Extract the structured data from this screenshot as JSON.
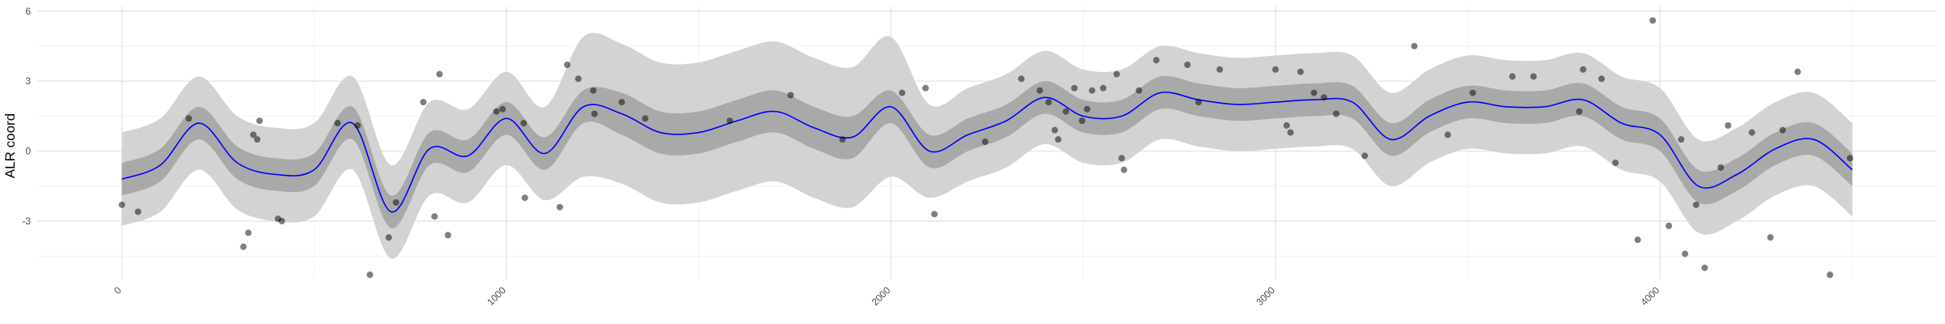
{
  "chart_data": {
    "type": "line",
    "y_label": "ALR coord",
    "xlim": [
      -220,
      4720
    ],
    "ylim": [
      -5.5,
      6.2
    ],
    "xticks": [
      0,
      1000,
      2000,
      3000,
      4000
    ],
    "yticks": [
      -3,
      0,
      3,
      6
    ],
    "grid": true,
    "x": [
      0,
      100,
      200,
      300,
      400,
      500,
      600,
      700,
      800,
      900,
      1000,
      1100,
      1200,
      1300,
      1400,
      1500,
      1600,
      1700,
      1800,
      1900,
      2000,
      2100,
      2200,
      2300,
      2400,
      2500,
      2600,
      2700,
      2800,
      2900,
      3000,
      3100,
      3200,
      3300,
      3400,
      3500,
      3600,
      3700,
      3800,
      3900,
      4000,
      4100,
      4200,
      4300,
      4400,
      4500
    ],
    "outer_band": {
      "color": "#d3d3d3",
      "lower": [
        -3.2,
        -2.6,
        -0.8,
        -2.5,
        -3.0,
        -2.8,
        -0.8,
        -4.6,
        -1.9,
        -2.2,
        -0.6,
        -2.1,
        -1.1,
        -1.4,
        -2.2,
        -2.2,
        -1.7,
        -1.3,
        -2.0,
        -2.4,
        -1.1,
        -2.0,
        -1.3,
        -0.7,
        0.3,
        -0.5,
        -0.5,
        0.5,
        0.2,
        0.0,
        0.1,
        0.2,
        0.1,
        -1.5,
        -0.5,
        0.1,
        -0.1,
        -0.1,
        0.2,
        -0.8,
        -1.3,
        -3.5,
        -3.0,
        -1.9,
        -1.5,
        -2.8
      ],
      "upper": [
        0.8,
        1.4,
        3.2,
        1.5,
        1.0,
        1.2,
        3.2,
        -0.6,
        2.1,
        1.8,
        3.4,
        1.9,
        4.9,
        4.6,
        3.8,
        3.8,
        4.3,
        4.7,
        4.0,
        3.6,
        4.9,
        2.0,
        2.7,
        3.3,
        4.3,
        3.5,
        3.5,
        4.5,
        4.2,
        4.0,
        4.1,
        4.2,
        4.1,
        2.5,
        3.5,
        4.1,
        3.9,
        3.9,
        4.2,
        3.2,
        2.7,
        0.5,
        1.0,
        2.1,
        2.5,
        1.2
      ]
    },
    "inner_band": {
      "color": "#a9a9a9",
      "lower": [
        -1.9,
        -1.3,
        0.5,
        -1.2,
        -1.7,
        -1.5,
        0.5,
        -3.3,
        -0.6,
        -0.9,
        0.7,
        -0.8,
        1.2,
        0.7,
        -0.1,
        -0.1,
        0.4,
        0.8,
        0.1,
        -0.3,
        1.2,
        -0.7,
        0.0,
        0.6,
        1.6,
        0.8,
        0.8,
        1.8,
        1.5,
        1.3,
        1.4,
        1.5,
        1.4,
        -0.2,
        0.8,
        1.4,
        1.2,
        1.2,
        1.5,
        0.5,
        0.0,
        -2.2,
        -1.7,
        -0.6,
        -0.2,
        -1.5
      ],
      "upper": [
        -0.5,
        0.1,
        1.9,
        0.2,
        -0.3,
        -0.1,
        1.9,
        -1.9,
        0.8,
        0.5,
        2.1,
        0.6,
        2.6,
        2.5,
        1.7,
        1.7,
        2.2,
        2.6,
        1.9,
        1.5,
        2.6,
        0.7,
        1.4,
        2.0,
        3.0,
        2.2,
        2.2,
        3.2,
        2.9,
        2.7,
        2.8,
        2.9,
        2.8,
        1.2,
        2.2,
        2.8,
        2.6,
        2.6,
        2.9,
        1.9,
        1.4,
        -0.8,
        -0.3,
        0.8,
        1.2,
        -0.1
      ]
    },
    "line": {
      "color": "#0000ff",
      "values": [
        -1.2,
        -0.6,
        1.2,
        -0.5,
        -1.0,
        -0.8,
        1.2,
        -2.6,
        0.1,
        -0.2,
        1.4,
        -0.1,
        1.9,
        1.6,
        0.8,
        0.8,
        1.3,
        1.7,
        1.0,
        0.6,
        1.9,
        0.0,
        0.7,
        1.3,
        2.3,
        1.5,
        1.5,
        2.5,
        2.2,
        2.0,
        2.1,
        2.2,
        2.1,
        0.5,
        1.5,
        2.1,
        1.9,
        1.9,
        2.2,
        1.2,
        0.7,
        -1.5,
        -1.0,
        0.1,
        0.5,
        -0.8
      ]
    },
    "points": {
      "color": "#000000",
      "x": [
        0,
        42,
        174,
        316,
        329,
        342,
        352,
        358,
        406,
        416,
        561,
        613,
        645,
        694,
        713,
        784,
        813,
        826,
        848,
        974,
        990,
        1045,
        1048,
        1139,
        1158,
        1187,
        1226,
        1229,
        1300,
        1361,
        1581,
        1739,
        1874,
        2029,
        2090,
        2113,
        2245,
        2339,
        2387,
        2410,
        2426,
        2435,
        2455,
        2477,
        2497,
        2510,
        2523,
        2552,
        2587,
        2600,
        2606,
        2645,
        2690,
        2771,
        2800,
        2855,
        3000,
        3029,
        3039,
        3065,
        3100,
        3126,
        3158,
        3232,
        3361,
        3448,
        3513,
        3616,
        3671,
        3790,
        3800,
        3848,
        3884,
        3942,
        3981,
        4023,
        4055,
        4065,
        4094,
        4116,
        4158,
        4177,
        4239,
        4287,
        4319,
        4358,
        4442,
        4494
      ],
      "y": [
        -2.3,
        -2.6,
        1.4,
        -4.1,
        -3.5,
        0.7,
        0.5,
        1.3,
        -2.9,
        -3.0,
        1.2,
        1.1,
        -5.3,
        -3.7,
        -2.2,
        2.1,
        -2.8,
        3.3,
        -3.6,
        1.7,
        1.8,
        1.2,
        -2.0,
        -2.4,
        3.7,
        3.1,
        2.6,
        1.6,
        2.1,
        1.4,
        1.3,
        2.4,
        0.5,
        2.5,
        2.7,
        -2.7,
        0.4,
        3.1,
        2.6,
        2.1,
        0.9,
        0.5,
        1.7,
        2.7,
        1.3,
        1.8,
        2.6,
        2.7,
        3.3,
        -0.3,
        -0.8,
        2.6,
        3.9,
        3.7,
        2.1,
        3.5,
        3.5,
        1.1,
        0.8,
        3.4,
        2.5,
        2.3,
        1.6,
        -0.2,
        4.5,
        0.7,
        2.5,
        3.2,
        3.2,
        1.7,
        3.5,
        3.1,
        -0.5,
        -3.8,
        5.6,
        -3.2,
        0.5,
        -4.4,
        -2.3,
        -5.0,
        -0.7,
        1.1,
        0.8,
        -3.7,
        0.9,
        3.4,
        -5.3,
        -0.3
      ]
    }
  }
}
